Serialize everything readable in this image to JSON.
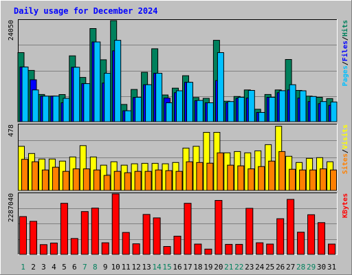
{
  "chart_data": {
    "type": "bar",
    "title": "Daily usage for December 2024",
    "days": [
      1,
      2,
      3,
      4,
      5,
      6,
      7,
      8,
      9,
      10,
      11,
      12,
      13,
      14,
      15,
      16,
      17,
      18,
      19,
      20,
      21,
      22,
      23,
      24,
      25,
      26,
      27,
      28,
      29,
      30,
      31
    ],
    "weekend_days": [
      1,
      7,
      8,
      14,
      15,
      21,
      22,
      28,
      29
    ],
    "panels": [
      {
        "id": "hits",
        "ymax_label": "24050",
        "ymax": 24050,
        "legend": [
          {
            "text": "Hits",
            "color": "#00805c"
          },
          {
            "text": "/",
            "color": "#000000"
          },
          {
            "text": "Files",
            "color": "#0000ff"
          },
          {
            "text": "/",
            "color": "#000000"
          },
          {
            "text": "Pages",
            "color": "#00c0ff"
          }
        ],
        "series": [
          {
            "name": "Hits",
            "color": "#00805c",
            "values": [
              16450,
              12200,
              6480,
              6090,
              6460,
              15680,
              10540,
              22170,
              14740,
              24050,
              4100,
              7680,
              11760,
              17360,
              6370,
              7980,
              10950,
              5760,
              5560,
              19370,
              4880,
              6000,
              7560,
              2960,
              6480,
              7560,
              14800,
              7450,
              6080,
              5810,
              5500
            ]
          },
          {
            "name": "Files",
            "color": "#0000ff",
            "values": [
              13020,
              9980,
              6090,
              6090,
              4500,
              12960,
              9070,
              18980,
              9200,
              16870,
              2600,
              5760,
              8810,
              11540,
              5630,
              6910,
              9380,
              5010,
              4500,
              9780,
              4500,
              5560,
              5630,
              2210,
              5810,
              6910,
              7560,
              5630,
              4800,
              4300,
              3900
            ]
          },
          {
            "name": "Pages",
            "color": "#00c0ff",
            "values": [
              13020,
              7560,
              6090,
              6090,
              5560,
              12960,
              9070,
              18980,
              11540,
              19370,
              2600,
              5810,
              8810,
              11540,
              4500,
              7370,
              9380,
              5060,
              4500,
              16450,
              4800,
              5810,
              7450,
              2210,
              5810,
              7380,
              8810,
              7370,
              6000,
              4800,
              4700
            ]
          }
        ]
      },
      {
        "id": "visits",
        "ymax_label": "478",
        "ymax": 478,
        "legend": [
          {
            "text": "Visits",
            "color": "#ffff00"
          },
          {
            "text": "/",
            "color": "#000000"
          },
          {
            "text": "Sites",
            "color": "#ff8000"
          }
        ],
        "series": [
          {
            "name": "Visits",
            "color": "#ffff00",
            "values": [
              323,
              270,
              230,
              230,
              215,
              245,
              328,
              245,
              185,
              210,
              185,
              195,
              198,
              198,
              195,
              205,
              310,
              323,
              425,
              425,
              275,
              285,
              275,
              290,
              335,
              470,
              250,
              205,
              235,
              240,
              210
            ]
          },
          {
            "name": "Sites",
            "color": "#ff8000",
            "values": [
              228,
              210,
              150,
              170,
              140,
              158,
              158,
              150,
              110,
              140,
              130,
              140,
              140,
              150,
              145,
              140,
              210,
              205,
              200,
              275,
              185,
              180,
              158,
              175,
              215,
              285,
              155,
              150,
              150,
              158,
              150
            ]
          }
        ]
      },
      {
        "id": "kbytes",
        "ymax_label": "2287040",
        "ymax": 2287040,
        "legend": [
          {
            "text": "KBytes",
            "color": "#ff0000"
          }
        ],
        "series": [
          {
            "name": "KBytes",
            "color": "#ff0000",
            "values": [
              1430000,
              1250000,
              370000,
              430000,
              1930000,
              600000,
              1620000,
              1750000,
              440000,
              2287040,
              830000,
              400000,
              1510000,
              1380000,
              300000,
              690000,
              1930000,
              390000,
              200000,
              2040000,
              380000,
              380000,
              1740000,
              440000,
              390000,
              1350000,
              2080000,
              840000,
              1500000,
              1200000,
              390000
            ]
          }
        ]
      }
    ]
  }
}
